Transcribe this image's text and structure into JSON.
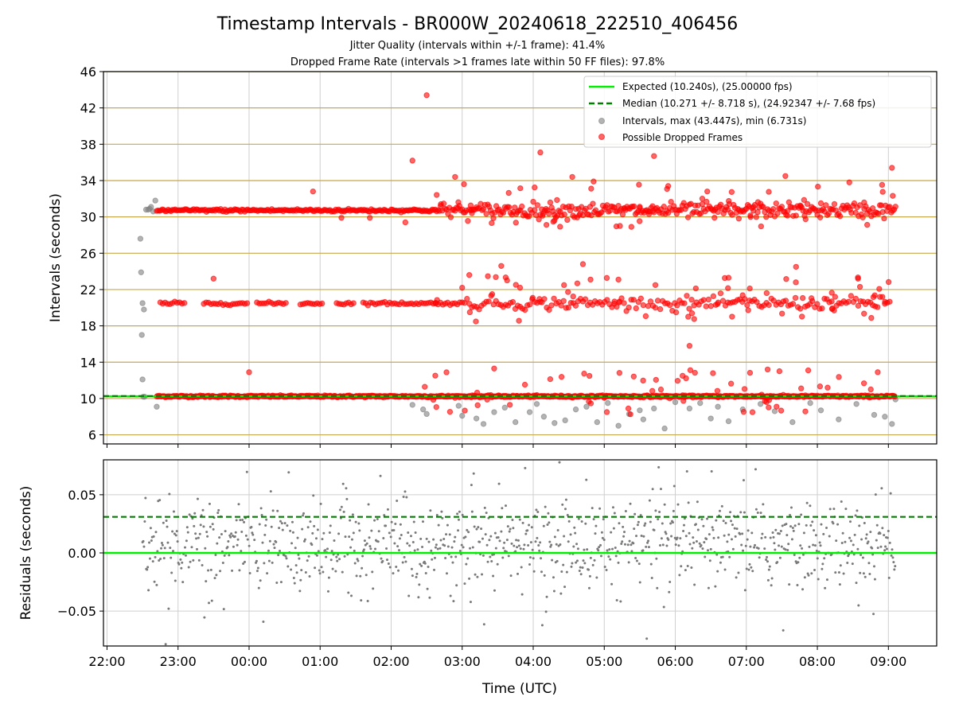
{
  "chart_data": [
    {
      "type": "scatter",
      "title": "Timestamp Intervals - BR000W_20240618_222510_406456",
      "subtitle_1": "Jitter Quality (intervals within +/-1 frame): 41.4%",
      "subtitle_2": "Dropped Frame Rate (intervals >1 frames late within 50 FF files): 97.8%",
      "ylabel": "Intervals (seconds)",
      "ylim": [
        5,
        46
      ],
      "yticks": [
        "6",
        "10",
        "14",
        "18",
        "22",
        "26",
        "30",
        "34",
        "38",
        "42",
        "46"
      ],
      "xlim_hours": [
        21.95,
        33.68
      ],
      "xtick_hours": [
        22,
        23,
        24,
        25,
        26,
        27,
        28,
        29,
        30,
        31,
        32,
        33
      ],
      "grid": true,
      "legend_position": "upper right",
      "expected_interval": 10.24,
      "median_interval": 10.271,
      "legend": {
        "expected": "Expected (10.240s), (25.00000 fps)",
        "median": "Median (10.271 +/- 8.718 s), (24.92347 +/- 7.68 fps)",
        "intervals": "Intervals, max (43.447s), min (6.731s)",
        "dropped": "Possible Dropped Frames"
      },
      "colors": {
        "expected": "#00ee00",
        "median": "#008000",
        "intervals": "#808080",
        "dropped": "#ff0000",
        "frame_lines": "#c8a84c"
      },
      "series": [
        {
          "name": "Intervals, max (43.447s), min (6.731s)",
          "points_x_hours": [
            22.47,
            22.48,
            22.49,
            22.5,
            22.52,
            22.5,
            22.51,
            22.53,
            22.55,
            22.58,
            22.6,
            22.62,
            22.65,
            22.68,
            22.7,
            23.0,
            23.5,
            24.4,
            25.2,
            25.9,
            26.3,
            26.45,
            26.5,
            26.95,
            27.0,
            27.05,
            27.2,
            27.3,
            27.45,
            27.6,
            27.75,
            27.95,
            28.05,
            28.15,
            28.3,
            28.45,
            28.6,
            28.75,
            28.9,
            29.05,
            29.2,
            29.35,
            29.5,
            29.55,
            29.7,
            29.85,
            30.0,
            30.2,
            30.35,
            30.5,
            30.6,
            30.75,
            30.95,
            31.2,
            31.4,
            31.65,
            31.9,
            32.05,
            32.3,
            32.55,
            32.8,
            32.95,
            33.05,
            33.1
          ],
          "points_y": [
            27.6,
            23.9,
            17.0,
            20.5,
            19.8,
            12.1,
            10.2,
            10.2,
            30.8,
            30.8,
            30.9,
            31.1,
            30.6,
            31.8,
            9.1,
            10.2,
            10.2,
            10.2,
            10.2,
            10.1,
            9.3,
            8.8,
            8.3,
            9.2,
            8.1,
            10.2,
            7.8,
            7.2,
            8.5,
            9.0,
            7.4,
            8.5,
            9.4,
            8.0,
            7.3,
            7.6,
            8.8,
            9.1,
            7.4,
            9.5,
            7.0,
            8.3,
            8.7,
            7.7,
            8.9,
            6.7,
            9.6,
            8.9,
            9.5,
            7.8,
            9.1,
            7.5,
            8.8,
            9.4,
            8.6,
            7.4,
            9.5,
            8.7,
            7.7,
            9.4,
            8.2,
            8.0,
            7.2,
            9.9
          ]
        },
        {
          "name": "Possible Dropped Frames",
          "band_centers": [
            10.24,
            20.48,
            30.72
          ],
          "outlier_x_hours": [
            23.5,
            24.0,
            24.9,
            25.3,
            25.7,
            26.2,
            26.5,
            26.3,
            26.9,
            27.0,
            27.1,
            27.45,
            27.55,
            28.1,
            28.3,
            28.55,
            28.7,
            28.85,
            29.2,
            29.5,
            29.7,
            29.9,
            30.2,
            30.45,
            30.75,
            31.1,
            31.3,
            31.55,
            31.7,
            32.05,
            32.25,
            32.45,
            32.6,
            32.85,
            33.05
          ],
          "outlier_y": [
            23.2,
            12.9,
            32.8,
            29.9,
            29.9,
            29.4,
            43.4,
            36.2,
            34.4,
            22.2,
            23.6,
            13.3,
            24.6,
            37.1,
            29.6,
            34.4,
            24.8,
            33.9,
            23.1,
            31.0,
            36.7,
            33.4,
            15.8,
            32.8,
            23.3,
            31.1,
            13.2,
            34.5,
            24.5,
            31.5,
            21.2,
            33.8,
            22.3,
            12.9,
            35.4
          ]
        }
      ]
    },
    {
      "type": "scatter",
      "xlabel": "Time (UTC)",
      "ylabel": "Residuals (seconds)",
      "ylim": [
        -0.08,
        0.08
      ],
      "yticks": [
        "−0.05",
        "0.00",
        "0.05"
      ],
      "ytick_values": [
        -0.05,
        0.0,
        0.05
      ],
      "xticks": [
        "22:00",
        "23:00",
        "00:00",
        "01:00",
        "02:00",
        "03:00",
        "04:00",
        "05:00",
        "06:00",
        "07:00",
        "08:00",
        "09:00"
      ],
      "zero_line": 0.0,
      "median_line": 0.031,
      "grid": true,
      "colors": {
        "points": "#7a7a7a",
        "zero": "#00ee00",
        "median": "#008000"
      }
    }
  ]
}
